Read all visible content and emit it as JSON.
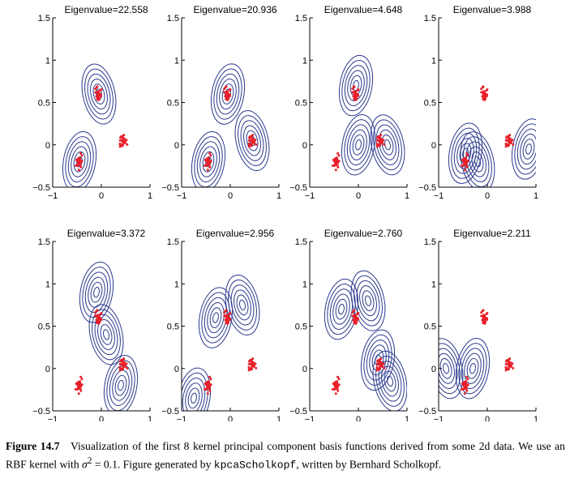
{
  "figure": {
    "label": "Figure 14.7",
    "caption": {
      "part1": "Visualization of the first 8 kernel principal component basis functions derived from some 2d data. We use an RBF kernel with ",
      "symbol": "σ",
      "exponent": "2",
      "part2": " = 0.1. Figure generated by ",
      "code": "kpcaScholkopf",
      "part3": ", written by Bernhard Scholkopf."
    }
  },
  "chart_data": [
    {
      "type": "contour",
      "title": "Eigenvalue=22.558",
      "xlim": [
        -1,
        1
      ],
      "ylim": [
        -0.5,
        1.5
      ],
      "xticks": [
        "−1",
        "0",
        "1"
      ],
      "yticks": [
        "−0.5",
        "0",
        "0.5",
        "1",
        "1.5"
      ],
      "contour_centers": [
        [
          -0.45,
          -0.2
        ],
        [
          -0.05,
          0.6
        ]
      ]
    },
    {
      "type": "contour",
      "title": "Eigenvalue=20.936",
      "xlim": [
        -1,
        1
      ],
      "ylim": [
        -0.5,
        1.5
      ],
      "xticks": [
        "−1",
        "0",
        "1"
      ],
      "yticks": [
        "−0.5",
        "0",
        "0.5",
        "1",
        "1.5"
      ],
      "contour_centers": [
        [
          -0.05,
          0.6
        ],
        [
          0.45,
          0.05
        ],
        [
          -0.45,
          -0.2
        ]
      ]
    },
    {
      "type": "contour",
      "title": "Eigenvalue=4.648",
      "xlim": [
        -1,
        1
      ],
      "ylim": [
        -0.5,
        1.5
      ],
      "xticks": [
        "−1",
        "0",
        "1"
      ],
      "yticks": [
        "−0.5",
        "0",
        "0.5",
        "1",
        "1.5"
      ],
      "contour_centers": [
        [
          0.0,
          0.0
        ],
        [
          0.6,
          0.0
        ],
        [
          -0.05,
          0.7
        ]
      ]
    },
    {
      "type": "contour",
      "title": "Eigenvalue=3.988",
      "xlim": [
        -1,
        1
      ],
      "ylim": [
        -0.5,
        1.5
      ],
      "xticks": [
        "−1",
        "0",
        "1"
      ],
      "yticks": [
        "−0.5",
        "0",
        "0.5",
        "1",
        "1.5"
      ],
      "contour_centers": [
        [
          -0.45,
          -0.1
        ],
        [
          -0.2,
          -0.2
        ],
        [
          0.85,
          -0.05
        ]
      ]
    },
    {
      "type": "contour",
      "title": "Eigenvalue=3.372",
      "xlim": [
        -1,
        1
      ],
      "ylim": [
        -0.5,
        1.5
      ],
      "xticks": [
        "−1",
        "0",
        "1"
      ],
      "yticks": [
        "−0.5",
        "0",
        "0.5",
        "1",
        "1.5"
      ],
      "contour_centers": [
        [
          -0.1,
          0.9
        ],
        [
          0.1,
          0.4
        ],
        [
          0.4,
          -0.2
        ]
      ]
    },
    {
      "type": "contour",
      "title": "Eigenvalue=2.956",
      "xlim": [
        -1,
        1
      ],
      "ylim": [
        -0.5,
        1.5
      ],
      "xticks": [
        "−1",
        "0",
        "1"
      ],
      "yticks": [
        "−0.5",
        "0",
        "0.5",
        "1",
        "1.5"
      ],
      "contour_centers": [
        [
          -0.3,
          0.6
        ],
        [
          0.25,
          0.75
        ],
        [
          -0.75,
          -0.35
        ]
      ]
    },
    {
      "type": "contour",
      "title": "Eigenvalue=2.760",
      "xlim": [
        -1,
        1
      ],
      "ylim": [
        -0.5,
        1.5
      ],
      "xticks": [
        "−1",
        "0",
        "1"
      ],
      "yticks": [
        "−0.5",
        "0",
        "0.5",
        "1",
        "1.5"
      ],
      "contour_centers": [
        [
          -0.35,
          0.7
        ],
        [
          0.2,
          0.8
        ],
        [
          0.4,
          0.1
        ],
        [
          0.65,
          -0.15
        ]
      ]
    },
    {
      "type": "contour",
      "title": "Eigenvalue=2.211",
      "xlim": [
        -1,
        1
      ],
      "ylim": [
        -0.5,
        1.5
      ],
      "xticks": [
        "−1",
        "0",
        "1"
      ],
      "yticks": [
        "−0.5",
        "0",
        "0.5",
        "1",
        "1.5"
      ],
      "contour_centers": [
        [
          -0.3,
          0.0
        ],
        [
          -0.85,
          0.0
        ]
      ]
    }
  ],
  "colors": {
    "contour": "#2b3a8f",
    "points": "#e8202a",
    "axes": "#000000"
  }
}
